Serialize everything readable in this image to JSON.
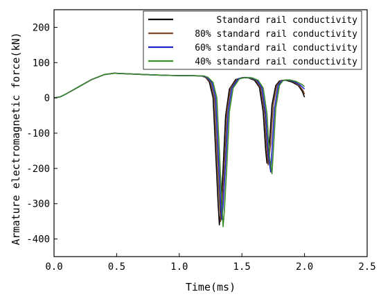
{
  "chart_data": {
    "type": "line",
    "title": "",
    "xlabel": "Time(ms)",
    "ylabel": "Armature electromagnetic force(kN)",
    "xlim": [
      0.0,
      2.5
    ],
    "ylim": [
      -450,
      250
    ],
    "xticks": [
      0.0,
      0.5,
      1.0,
      1.5,
      2.0,
      2.5
    ],
    "xtick_labels": [
      "0.0",
      "0.5",
      "1.0",
      "1.5",
      "2.0",
      "2.5"
    ],
    "yticks": [
      -400,
      -300,
      -200,
      -100,
      0,
      100,
      200
    ],
    "ytick_labels": [
      "-400",
      "-300",
      "-200",
      "-100",
      "0",
      "100",
      "200"
    ],
    "grid": false,
    "legend_position": "top-right",
    "series": [
      {
        "name": "Standard rail conductivity",
        "color": "#000000",
        "points": [
          [
            0.0,
            0
          ],
          [
            0.05,
            3
          ],
          [
            0.1,
            12
          ],
          [
            0.2,
            32
          ],
          [
            0.3,
            52
          ],
          [
            0.4,
            66
          ],
          [
            0.48,
            70
          ],
          [
            0.6,
            68
          ],
          [
            0.8,
            65
          ],
          [
            1.0,
            63
          ],
          [
            1.1,
            63
          ],
          [
            1.18,
            62
          ],
          [
            1.21,
            58
          ],
          [
            1.24,
            45
          ],
          [
            1.27,
            0
          ],
          [
            1.29,
            -150
          ],
          [
            1.31,
            -300
          ],
          [
            1.32,
            -360
          ],
          [
            1.33,
            -320
          ],
          [
            1.35,
            -200
          ],
          [
            1.37,
            -50
          ],
          [
            1.4,
            25
          ],
          [
            1.45,
            52
          ],
          [
            1.5,
            57
          ],
          [
            1.55,
            57
          ],
          [
            1.6,
            50
          ],
          [
            1.64,
            30
          ],
          [
            1.67,
            -40
          ],
          [
            1.69,
            -150
          ],
          [
            1.7,
            -185
          ],
          [
            1.72,
            -130
          ],
          [
            1.74,
            -20
          ],
          [
            1.77,
            35
          ],
          [
            1.8,
            48
          ],
          [
            1.85,
            50
          ],
          [
            1.9,
            45
          ],
          [
            1.95,
            35
          ],
          [
            1.98,
            20
          ],
          [
            2.0,
            2
          ]
        ]
      },
      {
        "name": "80% standard rail conductivity",
        "color": "#7a4a2a",
        "points": [
          [
            0.0,
            0
          ],
          [
            0.05,
            3
          ],
          [
            0.1,
            12
          ],
          [
            0.2,
            32
          ],
          [
            0.3,
            52
          ],
          [
            0.4,
            66
          ],
          [
            0.48,
            70
          ],
          [
            0.6,
            68
          ],
          [
            0.8,
            65
          ],
          [
            1.0,
            63
          ],
          [
            1.1,
            63
          ],
          [
            1.18,
            62
          ],
          [
            1.21,
            58
          ],
          [
            1.25,
            44
          ],
          [
            1.28,
            0
          ],
          [
            1.3,
            -150
          ],
          [
            1.32,
            -295
          ],
          [
            1.33,
            -350
          ],
          [
            1.34,
            -310
          ],
          [
            1.36,
            -190
          ],
          [
            1.38,
            -40
          ],
          [
            1.41,
            28
          ],
          [
            1.46,
            53
          ],
          [
            1.51,
            58
          ],
          [
            1.56,
            57
          ],
          [
            1.61,
            50
          ],
          [
            1.65,
            28
          ],
          [
            1.68,
            -40
          ],
          [
            1.7,
            -155
          ],
          [
            1.71,
            -190
          ],
          [
            1.73,
            -130
          ],
          [
            1.75,
            -20
          ],
          [
            1.78,
            36
          ],
          [
            1.81,
            49
          ],
          [
            1.86,
            51
          ],
          [
            1.91,
            46
          ],
          [
            1.96,
            34
          ],
          [
            1.99,
            20
          ],
          [
            2.0,
            10
          ]
        ]
      },
      {
        "name": "60% standard rail conductivity",
        "color": "#2222cc",
        "points": [
          [
            0.0,
            0
          ],
          [
            0.05,
            3
          ],
          [
            0.1,
            12
          ],
          [
            0.2,
            32
          ],
          [
            0.3,
            52
          ],
          [
            0.4,
            66
          ],
          [
            0.48,
            70
          ],
          [
            0.6,
            68
          ],
          [
            0.8,
            65
          ],
          [
            1.0,
            63
          ],
          [
            1.1,
            63
          ],
          [
            1.19,
            62
          ],
          [
            1.22,
            58
          ],
          [
            1.26,
            44
          ],
          [
            1.29,
            0
          ],
          [
            1.31,
            -150
          ],
          [
            1.33,
            -300
          ],
          [
            1.34,
            -345
          ],
          [
            1.35,
            -305
          ],
          [
            1.37,
            -185
          ],
          [
            1.39,
            -40
          ],
          [
            1.42,
            28
          ],
          [
            1.47,
            54
          ],
          [
            1.52,
            58
          ],
          [
            1.57,
            57
          ],
          [
            1.62,
            50
          ],
          [
            1.66,
            28
          ],
          [
            1.69,
            -45
          ],
          [
            1.71,
            -160
          ],
          [
            1.73,
            -210
          ],
          [
            1.74,
            -150
          ],
          [
            1.76,
            -30
          ],
          [
            1.79,
            36
          ],
          [
            1.82,
            49
          ],
          [
            1.87,
            51
          ],
          [
            1.92,
            46
          ],
          [
            1.97,
            35
          ],
          [
            2.0,
            25
          ]
        ]
      },
      {
        "name": "40% standard rail conductivity",
        "color": "#3a8a2a",
        "points": [
          [
            0.0,
            0
          ],
          [
            0.05,
            3
          ],
          [
            0.1,
            12
          ],
          [
            0.2,
            32
          ],
          [
            0.3,
            52
          ],
          [
            0.4,
            66
          ],
          [
            0.48,
            70
          ],
          [
            0.6,
            68
          ],
          [
            0.8,
            65
          ],
          [
            1.0,
            63
          ],
          [
            1.1,
            63
          ],
          [
            1.2,
            62
          ],
          [
            1.23,
            58
          ],
          [
            1.27,
            44
          ],
          [
            1.3,
            0
          ],
          [
            1.32,
            -150
          ],
          [
            1.34,
            -305
          ],
          [
            1.35,
            -365
          ],
          [
            1.36,
            -320
          ],
          [
            1.38,
            -190
          ],
          [
            1.4,
            -40
          ],
          [
            1.43,
            28
          ],
          [
            1.48,
            54
          ],
          [
            1.53,
            58
          ],
          [
            1.58,
            57
          ],
          [
            1.63,
            50
          ],
          [
            1.67,
            28
          ],
          [
            1.7,
            -45
          ],
          [
            1.72,
            -165
          ],
          [
            1.74,
            -215
          ],
          [
            1.75,
            -155
          ],
          [
            1.77,
            -30
          ],
          [
            1.8,
            36
          ],
          [
            1.83,
            50
          ],
          [
            1.88,
            51
          ],
          [
            1.93,
            47
          ],
          [
            1.98,
            38
          ],
          [
            2.0,
            32
          ]
        ]
      }
    ]
  }
}
